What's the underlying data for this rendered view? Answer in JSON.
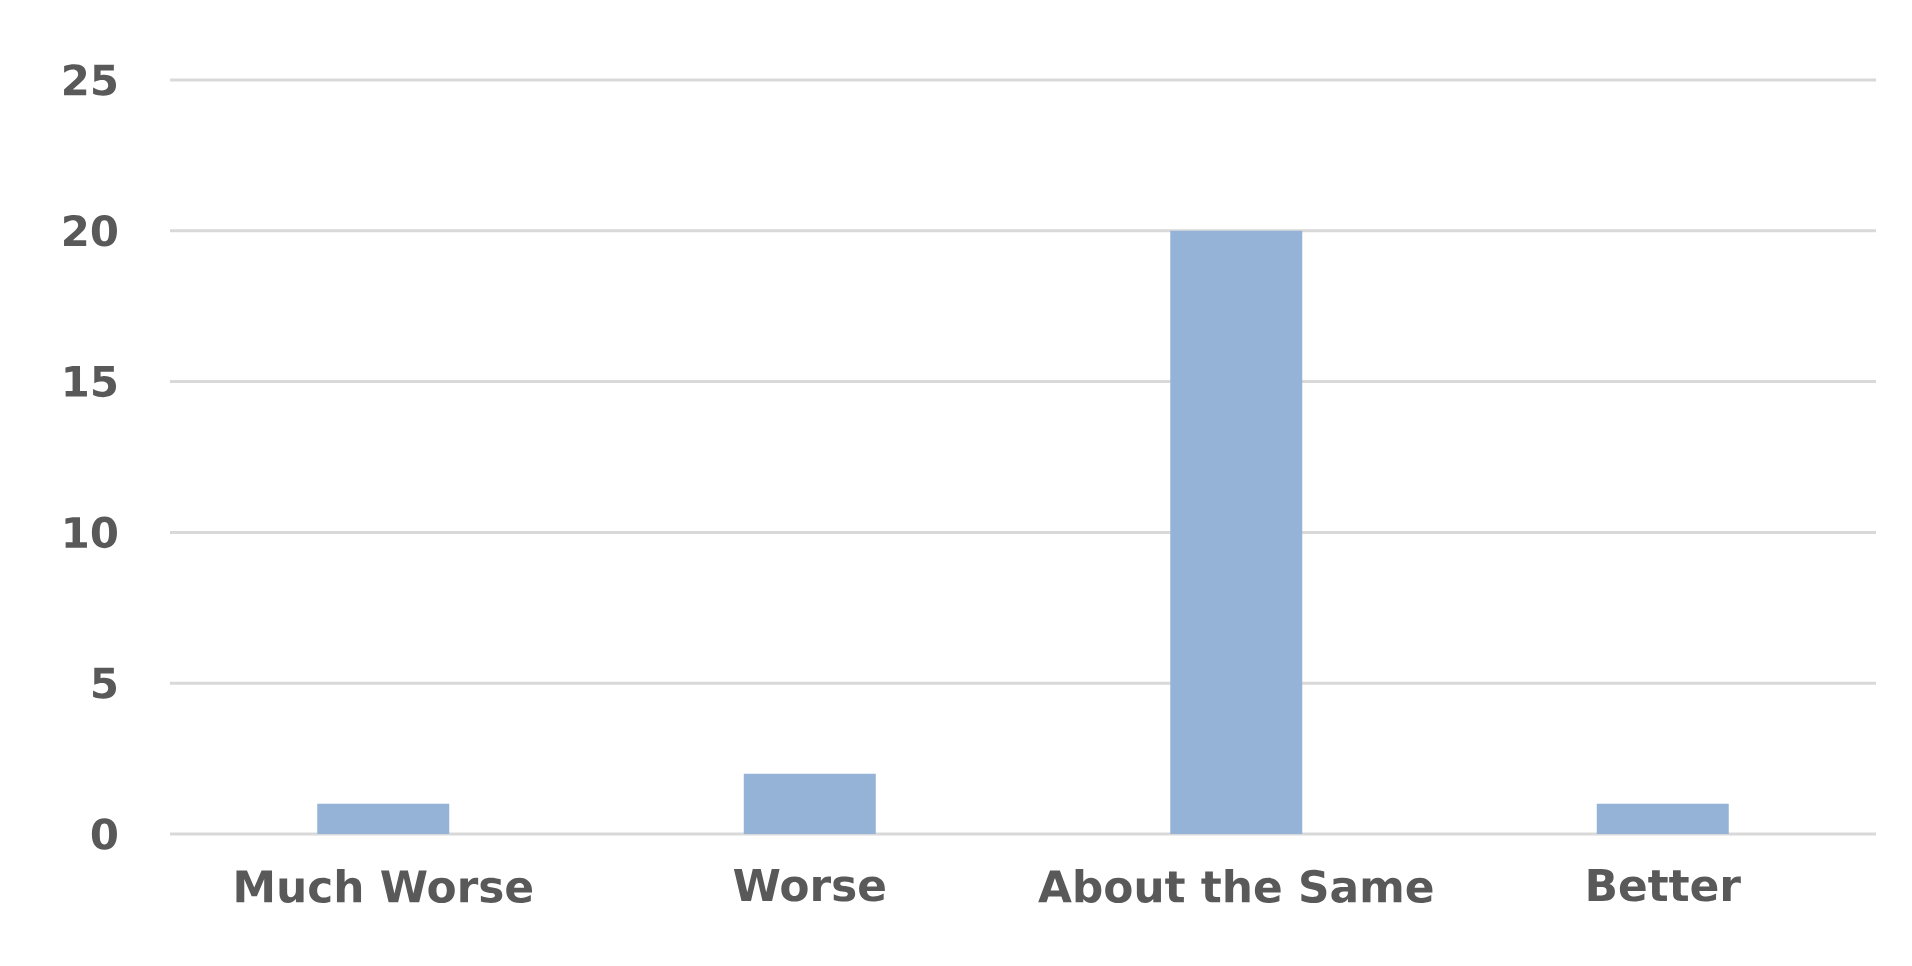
{
  "chart_data": {
    "type": "bar",
    "categories": [
      "Much Worse",
      "Worse",
      "About the Same",
      "Better"
    ],
    "values": [
      1,
      2,
      20,
      1
    ],
    "color": "#95b3d7",
    "ylim": [
      0,
      25
    ],
    "yticks": [
      0,
      5,
      10,
      15,
      20,
      25
    ],
    "grid": "y"
  }
}
